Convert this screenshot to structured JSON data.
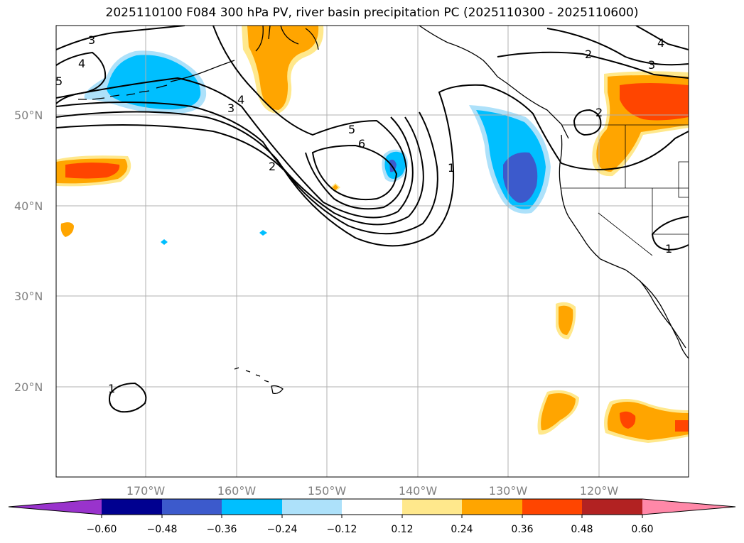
{
  "title": "2025110100 F084 300 hPa PV, river basin precipitation PC (2025110300 - 2025110600)",
  "lat_labels": [
    "50°N",
    "40°N",
    "30°N",
    "20°N"
  ],
  "lon_labels": [
    "170°W",
    "160°W",
    "150°W",
    "140°W",
    "130°W",
    "120°W"
  ],
  "colorbar": {
    "ticks": [
      "−0.60",
      "−0.48",
      "−0.36",
      "−0.24",
      "−0.12",
      "0.12",
      "0.24",
      "0.36",
      "0.48",
      "0.60"
    ],
    "colors": [
      "#9933cc",
      "#000090",
      "#3c5acc",
      "#00bfff",
      "#ade1fa",
      "#ffffff",
      "#ffe88c",
      "#ffa500",
      "#ff4500",
      "#b22222",
      "#ff88a8"
    ]
  },
  "contour_labels": [
    "3",
    "4",
    "5",
    "4",
    "3",
    "2",
    "5",
    "6",
    "1",
    "2",
    "3",
    "4",
    "2",
    "1",
    "1"
  ],
  "colors": {
    "shade_blue": "#00bfff",
    "shade_dark_blue": "#3c5acc",
    "shade_light_blue": "#ade1fa",
    "shade_yellow": "#ffe88c",
    "shade_orange": "#ffa500",
    "shade_red": "#ff4500"
  }
}
